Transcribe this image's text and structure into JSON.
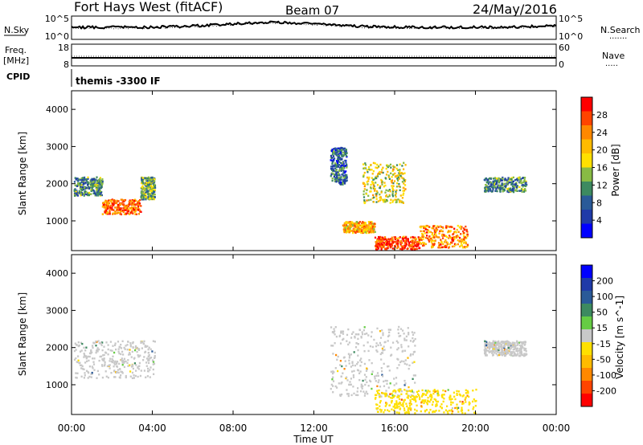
{
  "header": {
    "title": "Fort Hays West (fitACF)",
    "beam": "Beam 07",
    "date": "24/May/2016"
  },
  "noise_panel": {
    "left_label": "N.Sky",
    "right_label": "N.Search",
    "left_ticks": [
      "10^5",
      "10^0"
    ],
    "right_ticks": [
      "10^5",
      "10^0"
    ],
    "right_legend": "......."
  },
  "freq_panel": {
    "left_label": "Freq.",
    "left_unit": "[MHz]",
    "right_label": "Nave",
    "left_ticks": [
      "18",
      "8"
    ],
    "right_ticks": [
      "60",
      "0"
    ],
    "right_legend": "....."
  },
  "cpid_panel": {
    "left_label": "CPID",
    "value": "themis -3300 IF"
  },
  "power_panel": {
    "ylabel": "Slant Range [km]",
    "yticks": [
      "4000",
      "3000",
      "2000",
      "1000"
    ],
    "colorbar_label": "Power [dB]",
    "colorbar_ticks": [
      "28",
      "24",
      "20",
      "16",
      "12",
      "8",
      "4"
    ],
    "colorbar_colors": [
      "#ff0000",
      "#ff4400",
      "#ff8800",
      "#ffbb00",
      "#ffe000",
      "#88bb44",
      "#3d8a60",
      "#2a5a98",
      "#1f3aa8",
      "#0000ff"
    ]
  },
  "velocity_panel": {
    "ylabel": "Slant Range [km]",
    "yticks": [
      "4000",
      "3000",
      "2000",
      "1000"
    ],
    "colorbar_label": "Velocity [m s^-1]",
    "colorbar_ticks": [
      "200",
      "100",
      "50",
      "15",
      "-15",
      "-50",
      "-100",
      "-200"
    ],
    "colorbar_colors": [
      "#0000ff",
      "#1f3aa8",
      "#2a5a98",
      "#3d8a60",
      "#66cc44",
      "#c8c8c8",
      "#ffe000",
      "#ffbb00",
      "#ff8800",
      "#ff4400",
      "#ff0000"
    ]
  },
  "xaxis": {
    "ticks": [
      "00:00",
      "04:00",
      "08:00",
      "12:00",
      "16:00",
      "20:00",
      "00:00"
    ],
    "label": "Time UT"
  },
  "chart_data": {
    "type": "heatmap",
    "title": "Fort Hays West (fitACF)",
    "x_unit": "hours UT",
    "xlim": [
      0,
      24
    ],
    "ylim": [
      200,
      4500
    ],
    "ylabel": "Slant Range [km]",
    "xlabel": "Time UT",
    "power_range_db": [
      0,
      30
    ],
    "velocity_range_ms": [
      -200,
      200
    ],
    "power_echo_regions": [
      {
        "t_start": 0.1,
        "t_end": 1.5,
        "range_low": 1700,
        "range_high": 2200,
        "power_db": 10
      },
      {
        "t_start": 1.5,
        "t_end": 3.4,
        "range_low": 1200,
        "range_high": 1600,
        "power_db": 24
      },
      {
        "t_start": 3.4,
        "t_end": 4.1,
        "range_low": 1600,
        "range_high": 2200,
        "power_db": 12
      },
      {
        "t_start": 12.8,
        "t_end": 13.6,
        "range_low": 2000,
        "range_high": 3000,
        "power_db": 8
      },
      {
        "t_start": 13.4,
        "t_end": 15.0,
        "range_low": 700,
        "range_high": 1000,
        "power_db": 20
      },
      {
        "t_start": 14.4,
        "t_end": 16.5,
        "range_low": 1500,
        "range_high": 2600,
        "power_db": 16
      },
      {
        "t_start": 15.0,
        "t_end": 17.2,
        "range_low": 250,
        "range_high": 600,
        "power_db": 26
      },
      {
        "t_start": 17.2,
        "t_end": 19.6,
        "range_low": 300,
        "range_high": 900,
        "power_db": 22
      },
      {
        "t_start": 20.4,
        "t_end": 22.5,
        "range_low": 1800,
        "range_high": 2200,
        "power_db": 10
      }
    ],
    "velocity_echo_regions": [
      {
        "t_start": 0.1,
        "t_end": 4.1,
        "range_low": 1200,
        "range_high": 2200,
        "velocity_ms": 0
      },
      {
        "t_start": 12.8,
        "t_end": 17.0,
        "range_low": 700,
        "range_high": 2600,
        "velocity_ms": 0
      },
      {
        "t_start": 15.0,
        "t_end": 20.0,
        "range_low": 250,
        "range_high": 900,
        "velocity_ms": -40
      },
      {
        "t_start": 20.4,
        "t_end": 22.5,
        "range_low": 1800,
        "range_high": 2200,
        "velocity_ms": 0
      }
    ]
  }
}
